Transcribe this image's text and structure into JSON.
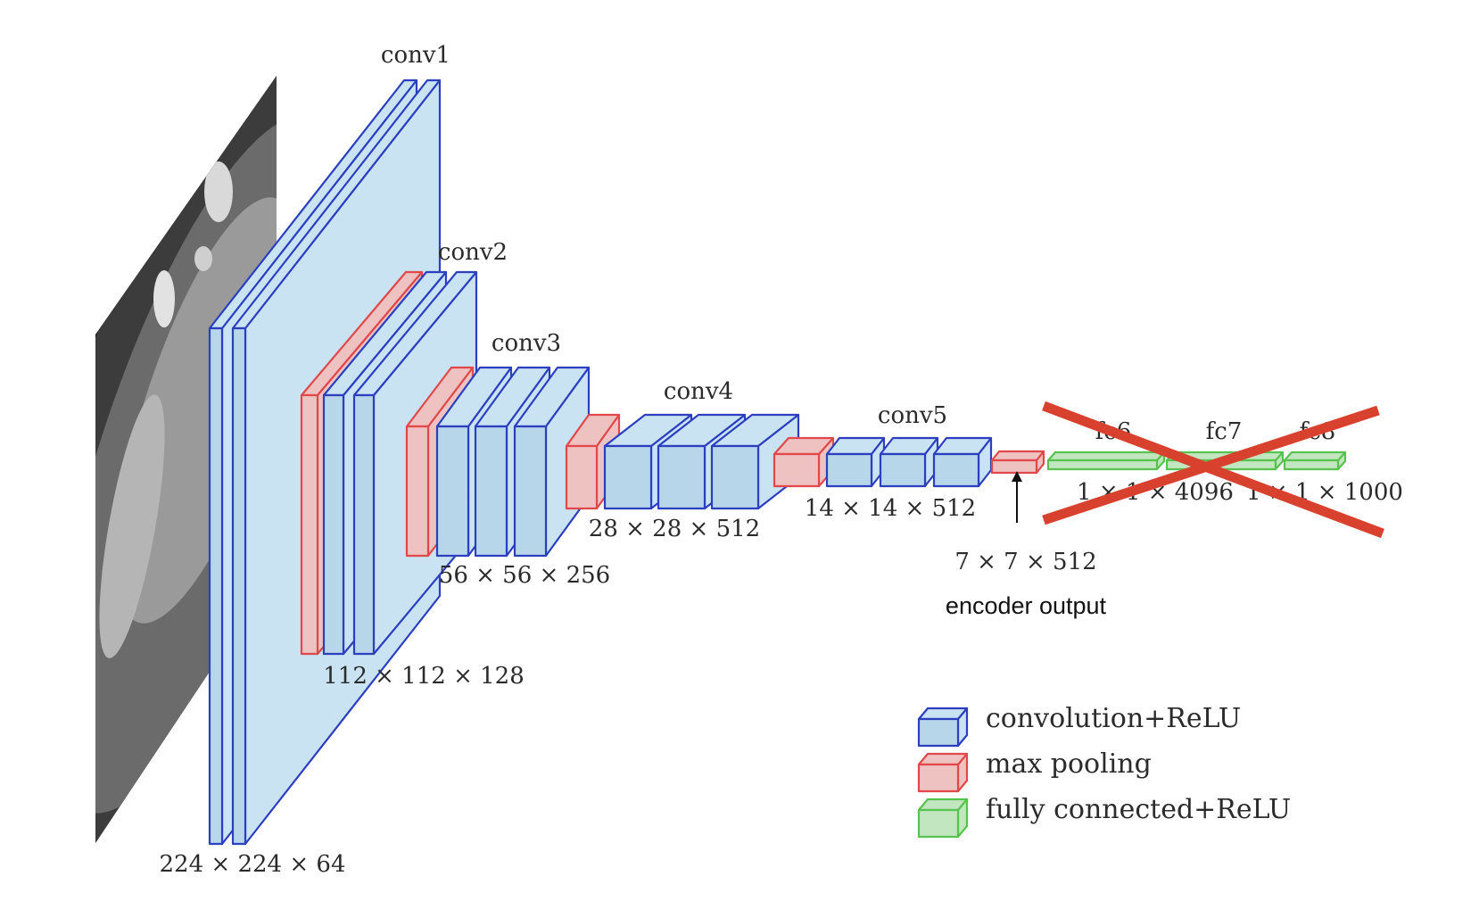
{
  "colors": {
    "conv_face": "#c9e3f3",
    "conv_front": "#b7d6ea",
    "conv_stroke": "#2b3fbf",
    "pool_face": "#efc2c2",
    "pool_stroke": "#e0484a",
    "fc_face": "#c2e6bf",
    "fc_stroke": "#58c24f",
    "cross": "#d8412d"
  },
  "layers": {
    "conv1": "conv1",
    "conv2": "conv2",
    "conv3": "conv3",
    "conv4": "conv4",
    "conv5": "conv5",
    "fc6": "fc6",
    "fc7": "fc7",
    "fc8": "fc8"
  },
  "dims": {
    "d224": "224 × 224 × 64",
    "d112": "112 × 112 × 128",
    "d56": "56 × 56 × 256",
    "d28": "28 × 28 × 512",
    "d14": "14 × 14 × 512",
    "d7": "7 × 7 × 512",
    "d4096": "1 × 1 × 4096",
    "d1000": "1 × 1 × 1000"
  },
  "annotation": {
    "encoder_output": "encoder output"
  },
  "legend": {
    "conv": "convolution+ReLU",
    "pool": "max pooling",
    "fc": "fully connected+ReLU"
  }
}
